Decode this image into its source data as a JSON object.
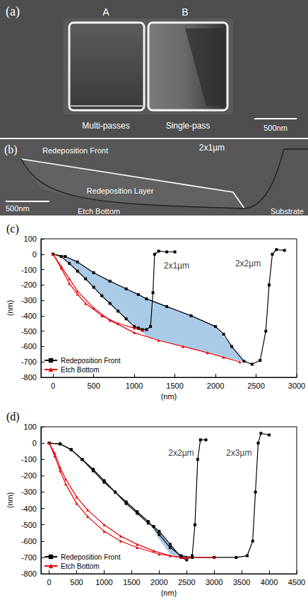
{
  "panels": [
    {
      "label": "(a)",
      "type": "image",
      "pit_labels": [
        "A",
        "B"
      ],
      "captions": [
        "Multi-passes",
        "Single-pass"
      ],
      "scale_bar": "500nm"
    },
    {
      "label": "(b)",
      "type": "image",
      "title": "2x1µm",
      "annotations": [
        "Redeposition Front",
        "Redeposition Layer",
        "Etch Bottom",
        "Substrate"
      ],
      "scale_bar": "500nm"
    }
  ],
  "chart_data": [
    {
      "type": "line",
      "title": "(c)",
      "x_label": "(nm)",
      "y_label": "(nm)",
      "xlim": [
        -150,
        3000
      ],
      "xticks": [
        0,
        500,
        1000,
        1500,
        2000,
        2500,
        3000
      ],
      "ylim": [
        -800,
        100
      ],
      "yticks": [
        -800,
        -700,
        -600,
        -500,
        -400,
        -300,
        -200,
        -100,
        0,
        100
      ],
      "grid": false,
      "legend": "bottom-left",
      "series": [
        {
          "type": "band",
          "color": "#a9cbe8",
          "x": [
            150,
            300,
            500,
            700,
            900,
            1050,
            1150,
            1400,
            1700,
            2000,
            2200,
            2350
          ],
          "values": [
            [
              -15,
              -40
            ],
            [
              -50,
              -110
            ],
            [
              -120,
              -215
            ],
            [
              -175,
              -320
            ],
            [
              -225,
              -420
            ],
            [
              -262,
              -480
            ],
            [
              -290,
              -535
            ],
            [
              -340,
              -573
            ],
            [
              -400,
              -613
            ],
            [
              -470,
              -650
            ],
            [
              -600,
              -680
            ],
            [
              -695,
              -700
            ]
          ]
        },
        {
          "name": "Redeposition Front",
          "color": "#000000",
          "marker": "square",
          "line_style": "solid",
          "x": [
            0,
            100,
            200,
            300,
            400,
            500,
            600,
            700,
            800,
            900,
            1000,
            1050,
            1100,
            1150,
            1200,
            1230,
            1250,
            1300,
            1400,
            1500
          ],
          "values": [
            0,
            -15,
            -60,
            -110,
            -160,
            -215,
            -270,
            -320,
            -370,
            -420,
            -470,
            -480,
            -490,
            -490,
            -470,
            -250,
            0,
            20,
            15,
            15
          ]
        },
        {
          "name": "Redeposition Front",
          "color": "#000000",
          "marker": "square",
          "line_style": "solid",
          "x": [
            0,
            150,
            300,
            500,
            700,
            900,
            1050,
            1150,
            1400,
            1700,
            2000,
            2100,
            2200,
            2350,
            2450,
            2550,
            2620,
            2660,
            2700,
            2750,
            2850
          ],
          "values": [
            0,
            -15,
            -50,
            -120,
            -175,
            -225,
            -262,
            -290,
            -340,
            -400,
            -470,
            -520,
            -600,
            -695,
            -715,
            -690,
            -500,
            -200,
            0,
            30,
            25
          ]
        },
        {
          "name": "Etch Bottom",
          "color": "#e8000b",
          "marker": "triangle",
          "line_style": "solid",
          "x": [
            0,
            100,
            200,
            300,
            400,
            600,
            800,
            1000,
            1100
          ],
          "values": [
            0,
            -90,
            -190,
            -260,
            -320,
            -400,
            -450,
            -480,
            -495
          ]
        },
        {
          "name": "Etch Bottom",
          "color": "#e8000b",
          "marker": "triangle",
          "line_style": "solid",
          "x": [
            0,
            100,
            200,
            300,
            500,
            700,
            1000,
            1300,
            1600,
            1900,
            2100,
            2300
          ],
          "values": [
            0,
            -80,
            -160,
            -240,
            -350,
            -430,
            -510,
            -560,
            -600,
            -640,
            -670,
            -700
          ]
        }
      ],
      "annotations": [
        {
          "text": "2x1µm",
          "x": 1520,
          "y": -75
        },
        {
          "text": "2x2µm",
          "x": 2400,
          "y": -60
        }
      ]
    },
    {
      "type": "line",
      "title": "(d)",
      "x_label": "(nm)",
      "y_label": "(nm)",
      "xlim": [
        -150,
        4500
      ],
      "xticks": [
        0,
        500,
        1000,
        1500,
        2000,
        2500,
        3000,
        3500,
        4000,
        4500
      ],
      "ylim": [
        -800,
        100
      ],
      "yticks": [
        -800,
        -700,
        -600,
        -500,
        -400,
        -300,
        -200,
        -100,
        0,
        100
      ],
      "grid": false,
      "legend": "bottom-left",
      "series": [
        {
          "type": "band",
          "color": "#a9cbe8",
          "x": [
            1900,
            2000,
            2200,
            2400,
            2500
          ],
          "values": [
            [
              -510,
              -525
            ],
            [
              -540,
              -590
            ],
            [
              -620,
              -680
            ],
            [
              -700,
              -705
            ],
            [
              -715,
              -715
            ]
          ]
        },
        {
          "name": "Redeposition Front",
          "color": "#000000",
          "marker": "square",
          "line_style": "solid",
          "x": [
            0,
            200,
            400,
            600,
            800,
            1000,
            1200,
            1400,
            1600,
            1800,
            1900,
            2000,
            2200,
            2400,
            2500,
            2600,
            2650,
            2700,
            2750,
            2850
          ],
          "values": [
            0,
            -5,
            -40,
            -100,
            -170,
            -240,
            -300,
            -370,
            -430,
            -490,
            -510,
            -540,
            -620,
            -700,
            -715,
            -690,
            -500,
            -100,
            20,
            20
          ]
        },
        {
          "name": "Redeposition Front",
          "color": "#000000",
          "marker": "square",
          "line_style": "solid",
          "x": [
            0,
            200,
            400,
            600,
            800,
            1000,
            1200,
            1400,
            1600,
            1800,
            2000,
            2200,
            2400,
            2600,
            3000,
            3400,
            3600,
            3700,
            3750,
            3800,
            3850,
            4000
          ],
          "values": [
            0,
            -5,
            -40,
            -100,
            -160,
            -230,
            -300,
            -360,
            -420,
            -480,
            -560,
            -640,
            -690,
            -700,
            -700,
            -700,
            -690,
            -600,
            -300,
            0,
            60,
            50
          ]
        },
        {
          "name": "Etch Bottom",
          "color": "#e8000b",
          "marker": "triangle",
          "line_style": "solid",
          "x": [
            0,
            100,
            200,
            300,
            500,
            700,
            1000,
            1300,
            1600,
            1900,
            2200,
            2500
          ],
          "values": [
            0,
            -60,
            -150,
            -220,
            -330,
            -410,
            -500,
            -570,
            -620,
            -660,
            -690,
            -705
          ]
        },
        {
          "name": "Etch Bottom",
          "color": "#e8000b",
          "marker": "triangle",
          "line_style": "solid",
          "x": [
            0,
            100,
            200,
            300,
            500,
            700,
            1000,
            1300,
            1600,
            2000,
            2400,
            3000
          ],
          "values": [
            0,
            -80,
            -170,
            -250,
            -370,
            -450,
            -540,
            -600,
            -640,
            -680,
            -700,
            -700
          ]
        }
      ],
      "annotations": [
        {
          "text": "2x2µm",
          "x": 2400,
          "y": -60
        },
        {
          "text": "2x3µm",
          "x": 3450,
          "y": -60
        }
      ]
    }
  ]
}
